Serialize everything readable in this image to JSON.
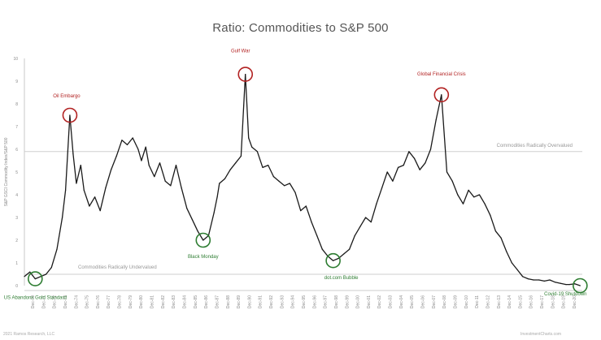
{
  "chart_data": {
    "type": "line",
    "title": "Ratio: Commodities to S&P 500",
    "ylabel": "S&P GSCI Commodity Index/S&P 500",
    "xlabel": "",
    "xlim": [
      1970.0,
      2021.5
    ],
    "ylim": [
      0,
      10
    ],
    "y_ticks": [
      0,
      1,
      2,
      3,
      4,
      5,
      6,
      7,
      8,
      9,
      10
    ],
    "x_tick_labels": [
      "Dec-70",
      "Dec-71",
      "Dec-72",
      "Dec-73",
      "Dec-74",
      "Dec-75",
      "Dec-76",
      "Dec-77",
      "Dec-78",
      "Dec-79",
      "Dec-80",
      "Dec-81",
      "Dec-82",
      "Dec-83",
      "Dec-84",
      "Dec-85",
      "Dec-86",
      "Dec-87",
      "Dec-88",
      "Dec-89",
      "Dec-90",
      "Dec-91",
      "Dec-92",
      "Dec-93",
      "Dec-94",
      "Dec-95",
      "Dec-96",
      "Dec-97",
      "Dec-98",
      "Dec-99",
      "Dec-00",
      "Dec-01",
      "Dec-02",
      "Dec-03",
      "Dec-04",
      "Dec-05",
      "Dec-06",
      "Dec-07",
      "Dec-08",
      "Dec-09",
      "Dec-10",
      "Dec-11",
      "Dec-12",
      "Dec-13",
      "Dec-14",
      "Dec-15",
      "Dec-16",
      "Dec-17",
      "Dec-18",
      "Dec-19",
      "Dec-20"
    ],
    "grid": false,
    "x": [
      1970.0,
      1970.5,
      1971.0,
      1971.5,
      1972.0,
      1972.5,
      1973.0,
      1973.5,
      1973.8,
      1974.2,
      1974.5,
      1974.8,
      1975.2,
      1975.5,
      1976.0,
      1976.5,
      1977.0,
      1977.5,
      1978.0,
      1978.5,
      1979.0,
      1979.5,
      1980.0,
      1980.5,
      1980.8,
      1981.2,
      1981.5,
      1982.0,
      1982.5,
      1983.0,
      1983.5,
      1984.0,
      1984.5,
      1985.0,
      1985.5,
      1986.0,
      1986.5,
      1987.0,
      1987.5,
      1987.8,
      1988.0,
      1988.5,
      1989.0,
      1989.5,
      1990.0,
      1990.4,
      1990.7,
      1991.0,
      1991.5,
      1992.0,
      1992.5,
      1993.0,
      1993.5,
      1994.0,
      1994.5,
      1995.0,
      1995.5,
      1996.0,
      1996.5,
      1997.0,
      1997.5,
      1998.0,
      1998.5,
      1999.0,
      1999.5,
      2000.0,
      2000.5,
      2001.0,
      2001.5,
      2002.0,
      2002.5,
      2003.0,
      2003.5,
      2004.0,
      2004.5,
      2005.0,
      2005.5,
      2006.0,
      2006.5,
      2007.0,
      2007.5,
      2008.0,
      2008.5,
      2009.0,
      2009.5,
      2010.0,
      2010.5,
      2011.0,
      2011.5,
      2012.0,
      2012.5,
      2013.0,
      2013.5,
      2014.0,
      2014.5,
      2015.0,
      2015.5,
      2016.0,
      2016.5,
      2017.0,
      2017.5,
      2018.0,
      2018.5,
      2019.0,
      2019.5,
      2020.0,
      2020.3,
      2020.8,
      2021.3
    ],
    "series": [
      {
        "values": [
          0.4,
          0.6,
          0.3,
          0.4,
          0.5,
          0.8,
          1.6,
          3.0,
          4.2,
          7.5,
          5.8,
          4.5,
          5.3,
          4.2,
          3.5,
          3.9,
          3.3,
          4.3,
          5.1,
          5.7,
          6.4,
          6.2,
          6.5,
          6.0,
          5.5,
          6.1,
          5.3,
          4.8,
          5.4,
          4.6,
          4.4,
          5.3,
          4.3,
          3.4,
          2.9,
          2.4,
          2.0,
          2.2,
          3.2,
          3.9,
          4.5,
          4.7,
          5.1,
          5.4,
          5.7,
          9.3,
          6.5,
          6.1,
          5.9,
          5.2,
          5.3,
          4.8,
          4.6,
          4.4,
          4.5,
          4.1,
          3.3,
          3.5,
          2.8,
          2.2,
          1.6,
          1.3,
          1.1,
          1.2,
          1.4,
          1.6,
          2.2,
          2.6,
          3.0,
          2.8,
          3.6,
          4.3,
          5.0,
          4.6,
          5.2,
          5.3,
          5.9,
          5.6,
          5.1,
          5.4,
          6.0,
          7.3,
          8.4,
          5.0,
          4.6,
          4.0,
          3.6,
          4.2,
          3.9,
          4.0,
          3.6,
          3.1,
          2.4,
          2.1,
          1.5,
          1.0,
          0.7,
          0.4,
          0.3,
          0.25,
          0.25,
          0.2,
          0.25,
          0.15,
          0.1,
          0.05,
          0.05,
          0.08,
          0.0
        ]
      }
    ],
    "reference_lines": [
      {
        "y": 5.9,
        "label": "Commodities Radically Overvalued"
      },
      {
        "y": 0.5,
        "label": "Commodities Radically Undervalued"
      }
    ],
    "annotations": [
      {
        "label": "Oil Embargo",
        "x": 1974.2,
        "y": 7.5,
        "color": "#b22222"
      },
      {
        "label": "Gulf War",
        "x": 1990.4,
        "y": 9.3,
        "color": "#b22222"
      },
      {
        "label": "Global Financial Crisis",
        "x": 2008.5,
        "y": 8.4,
        "color": "#b22222"
      },
      {
        "label": "Black Monday",
        "x": 1986.5,
        "y": 2.0,
        "color": "#2e7d32"
      },
      {
        "label": "US Abandons Gold Standard",
        "x": 1971.0,
        "y": 0.3,
        "color": "#2e7d32"
      },
      {
        "label": "dot.com Bubble",
        "x": 1998.5,
        "y": 1.1,
        "color": "#2e7d32"
      },
      {
        "label": "Covid-19 Shutdown",
        "x": 2021.3,
        "y": 0.0,
        "color": "#2e7d32"
      }
    ]
  },
  "footer": {
    "left": "2021 Ramos Research, LLC",
    "right": "InvestmentCharts.com"
  }
}
